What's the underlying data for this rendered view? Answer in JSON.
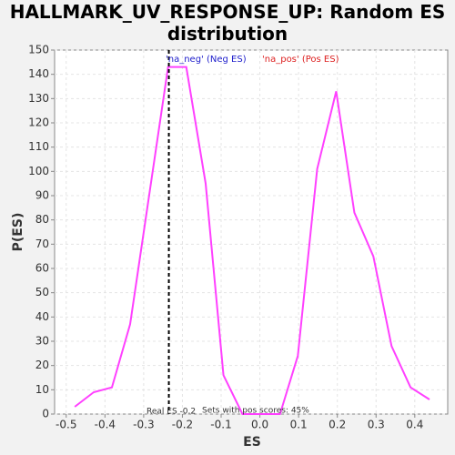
{
  "chart_data": {
    "type": "line",
    "title": "HALLMARK_UV_RESPONSE_UP: Random ES distribution",
    "x_label": "ES",
    "y_label": "P(ES)",
    "x": [
      -0.478,
      -0.429,
      -0.382,
      -0.335,
      -0.286,
      -0.237,
      -0.19,
      -0.14,
      -0.094,
      -0.045,
      0.005,
      0.052,
      0.098,
      0.148,
      0.197,
      0.244,
      0.293,
      0.34,
      0.389,
      0.438
    ],
    "series": [
      {
        "name": "Random ES",
        "color": "#ff40ff",
        "values": [
          3,
          9,
          11,
          37,
          90,
          143,
          143,
          95,
          16,
          0,
          0,
          0,
          24,
          101,
          133,
          83,
          65,
          28,
          11,
          6
        ]
      }
    ],
    "xlim": [
      -0.53,
      0.485
    ],
    "ylim": [
      0,
      150
    ],
    "xticks": [
      -0.5,
      -0.4,
      -0.3,
      -0.2,
      -0.1,
      {
        "value": 0,
        "label": "0.0"
      },
      0.1,
      0.2,
      0.3,
      0.4
    ],
    "yticks": [
      0,
      10,
      20,
      30,
      40,
      50,
      60,
      70,
      80,
      90,
      100,
      110,
      120,
      130,
      140,
      150
    ],
    "grid": true,
    "real_es": -0.235,
    "legend": [
      {
        "text": "'na_neg' (Neg ES)",
        "color": "#2020cc"
      },
      {
        "text": "'na_pos' (Pos ES)",
        "color": "#dd2020"
      }
    ],
    "annotations": [
      "Real ES -0.2",
      "Sets with pos scores: 45%"
    ]
  }
}
